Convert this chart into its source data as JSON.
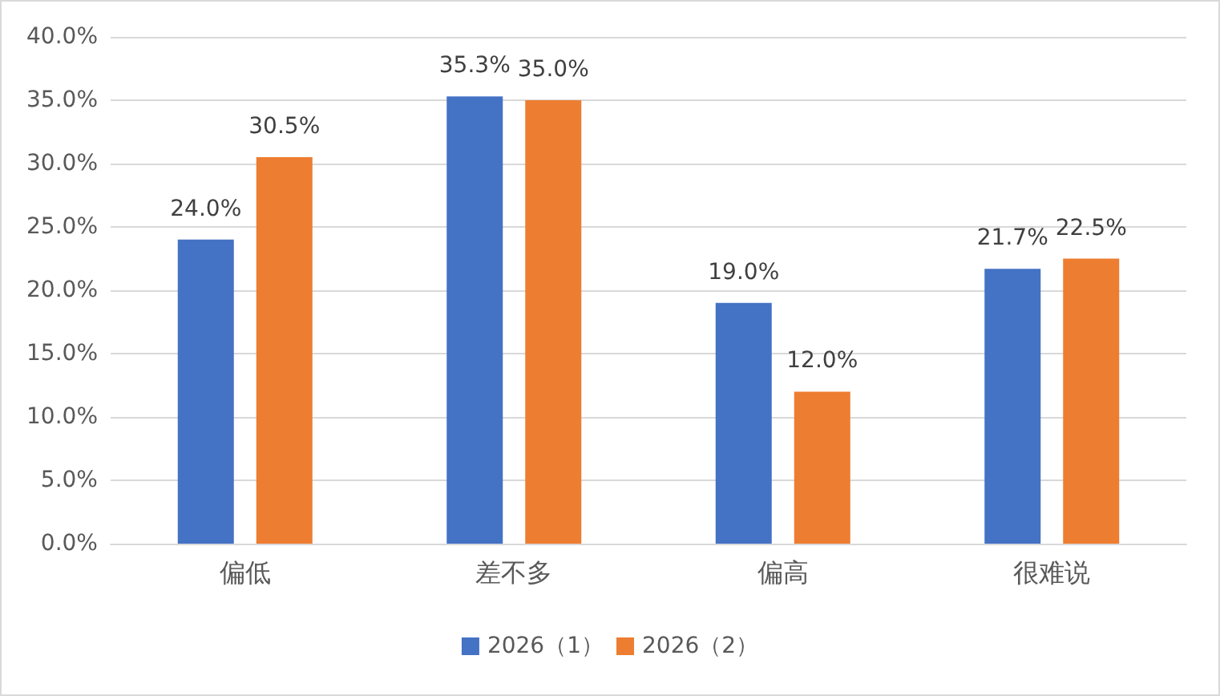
{
  "chart_data": {
    "type": "bar",
    "categories": [
      "偏低",
      "差不多",
      "偏高",
      "很难说"
    ],
    "series": [
      {
        "name": "2026（1）",
        "color": "#4472c4",
        "values": [
          24.0,
          35.3,
          19.0,
          21.7
        ],
        "value_labels": [
          "24.0%",
          "35.3%",
          "19.0%",
          "21.7%"
        ]
      },
      {
        "name": "2026（2）",
        "color": "#ed7d31",
        "values": [
          30.5,
          35.0,
          12.0,
          22.5
        ],
        "value_labels": [
          "30.5%",
          "35.0%",
          "12.0%",
          "22.5%"
        ]
      }
    ],
    "ylim": [
      0,
      40
    ],
    "yticks": [
      {
        "value": 0,
        "label": "0.0%"
      },
      {
        "value": 5,
        "label": "5.0%"
      },
      {
        "value": 10,
        "label": "10.0%"
      },
      {
        "value": 15,
        "label": "15.0%"
      },
      {
        "value": 20,
        "label": "20.0%"
      },
      {
        "value": 25,
        "label": "25.0%"
      },
      {
        "value": 30,
        "label": "30.0%"
      },
      {
        "value": 35,
        "label": "35.0%"
      },
      {
        "value": 40,
        "label": "40.0%"
      }
    ],
    "grid": "y",
    "legend": "bottom"
  }
}
